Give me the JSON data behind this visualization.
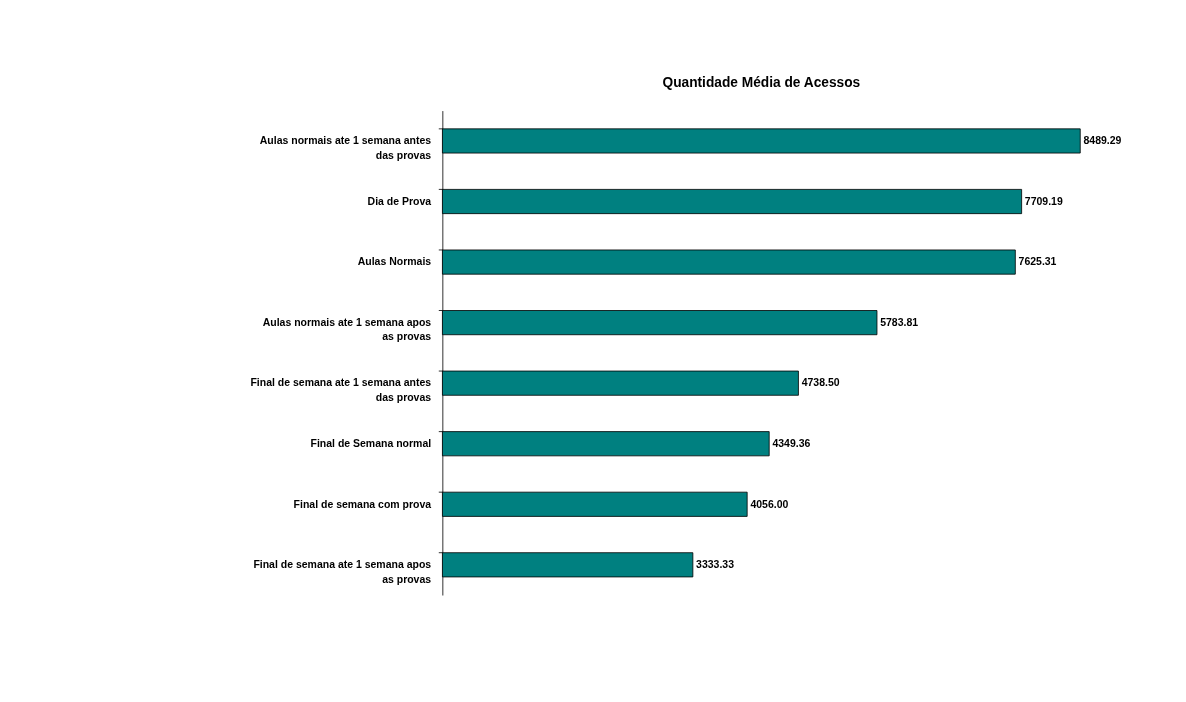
{
  "chart_data": {
    "type": "bar",
    "orientation": "horizontal",
    "title": "Quantidade Média de Acessos",
    "categories": [
      "Aulas normais ate 1 semana antes das provas",
      "Dia de Prova",
      "Aulas Normais",
      "Aulas normais ate 1 semana apos as provas",
      "Final de semana ate 1 semana antes das provas",
      "Final de Semana normal",
      "Final de semana com prova",
      "Final de semana ate 1 semana apos as provas"
    ],
    "values": [
      8489.29,
      7709.19,
      7625.31,
      5783.81,
      4738.5,
      4349.36,
      4056.0,
      3333.33
    ],
    "value_labels": [
      "8489.29",
      "7709.19",
      "7625.31",
      "5783.81",
      "4738.50",
      "4349.36",
      "4056.00",
      "3333.33"
    ],
    "color": "#008080"
  }
}
